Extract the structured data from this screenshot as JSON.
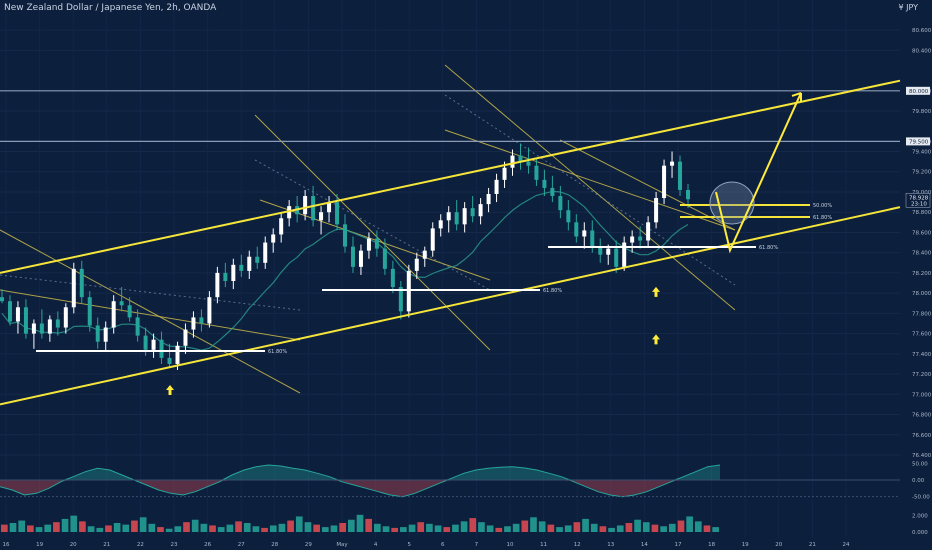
{
  "header": {
    "symbol_title": "New Zealand Dollar / Japanese Yen, 2h, OANDA",
    "currency": "¥ JPY"
  },
  "colors": {
    "background": "#0c1f3d",
    "bull": "#26a69a",
    "bear": "#e84e52",
    "channel": "#f5e53a",
    "pitchfork": "#c9b94a",
    "fib_line": "#ffffff",
    "level_line": "#8a9bb5",
    "ma_line": "#2a9d8f",
    "arrow": "#ffeb3b"
  },
  "chart_data": {
    "type": "candlestick",
    "instrument": "NZD/JPY",
    "timeframe": "2h",
    "y_axis": {
      "ticks": [
        "80.600",
        "80.400",
        "80.000",
        "79.800",
        "79.500",
        "79.400",
        "79.200",
        "79.000",
        "78.800",
        "78.600",
        "78.400",
        "78.200",
        "78.000",
        "77.800",
        "77.600",
        "77.400",
        "77.200",
        "77.000",
        "76.800",
        "76.600",
        "76.400"
      ],
      "ylim": [
        76.4,
        80.7
      ]
    },
    "x_axis": {
      "ticks": [
        "16",
        "19",
        "20",
        "21",
        "22",
        "23",
        "26",
        "27",
        "28",
        "29",
        "May",
        "4",
        "5",
        "6",
        "7",
        "10",
        "11",
        "12",
        "13",
        "14",
        "17",
        "18",
        "19",
        "20",
        "21",
        "24"
      ]
    },
    "price_labels": {
      "upper_level": "80.000",
      "lower_level": "79.500",
      "current_price": "78.928",
      "countdown": "23:10"
    },
    "horizontal_levels": [
      80.0,
      79.5
    ],
    "fib_annotations": [
      "61.80%",
      "61.80%",
      "61.80%",
      "50.00%",
      "61.80%"
    ],
    "channel": {
      "upper": [
        {
          "x": "16",
          "y": 78.2
        },
        {
          "x": "24",
          "y": 80.1
        }
      ],
      "lower": [
        {
          "x": "16",
          "y": 76.9
        },
        {
          "x": "24",
          "y": 78.85
        }
      ]
    },
    "swing_lows_marked": [
      {
        "x": "23",
        "y": 77.25
      },
      {
        "x": "4",
        "y": 77.75
      },
      {
        "x": "13",
        "y": 78.22
      }
    ],
    "projection": {
      "from_price": 78.7,
      "to_price": 79.9
    },
    "candles": [
      {
        "x": "16",
        "o": 77.96,
        "h": 78.04,
        "l": 77.9,
        "c": 77.92
      },
      {
        "x": "16",
        "o": 77.92,
        "h": 77.98,
        "l": 77.68,
        "c": 77.72
      },
      {
        "x": "16",
        "o": 77.72,
        "h": 77.92,
        "l": 77.6,
        "c": 77.86
      },
      {
        "x": "16",
        "o": 77.86,
        "h": 77.94,
        "l": 77.55,
        "c": 77.6
      },
      {
        "x": "19",
        "o": 77.6,
        "h": 77.74,
        "l": 77.45,
        "c": 77.7
      },
      {
        "x": "19",
        "o": 77.7,
        "h": 77.84,
        "l": 77.55,
        "c": 77.6
      },
      {
        "x": "19",
        "o": 77.6,
        "h": 77.78,
        "l": 77.52,
        "c": 77.74
      },
      {
        "x": "19",
        "o": 77.74,
        "h": 77.82,
        "l": 77.58,
        "c": 77.66
      },
      {
        "x": "20",
        "o": 77.66,
        "h": 77.9,
        "l": 77.6,
        "c": 77.86
      },
      {
        "x": "20",
        "o": 77.86,
        "h": 78.3,
        "l": 77.8,
        "c": 78.24
      },
      {
        "x": "20",
        "o": 78.24,
        "h": 78.32,
        "l": 77.9,
        "c": 77.96
      },
      {
        "x": "20",
        "o": 77.96,
        "h": 78.02,
        "l": 77.62,
        "c": 77.68
      },
      {
        "x": "21",
        "o": 77.68,
        "h": 77.76,
        "l": 77.45,
        "c": 77.52
      },
      {
        "x": "21",
        "o": 77.52,
        "h": 77.72,
        "l": 77.42,
        "c": 77.66
      },
      {
        "x": "21",
        "o": 77.66,
        "h": 77.98,
        "l": 77.6,
        "c": 77.92
      },
      {
        "x": "21",
        "o": 77.92,
        "h": 78.06,
        "l": 77.82,
        "c": 77.88
      },
      {
        "x": "22",
        "o": 77.88,
        "h": 77.96,
        "l": 77.72,
        "c": 77.76
      },
      {
        "x": "22",
        "o": 77.76,
        "h": 77.84,
        "l": 77.52,
        "c": 77.58
      },
      {
        "x": "22",
        "o": 77.58,
        "h": 77.66,
        "l": 77.38,
        "c": 77.44
      },
      {
        "x": "22",
        "o": 77.44,
        "h": 77.6,
        "l": 77.36,
        "c": 77.54
      },
      {
        "x": "23",
        "o": 77.54,
        "h": 77.62,
        "l": 77.3,
        "c": 77.36
      },
      {
        "x": "23",
        "o": 77.36,
        "h": 77.5,
        "l": 77.26,
        "c": 77.3
      },
      {
        "x": "23",
        "o": 77.3,
        "h": 77.52,
        "l": 77.24,
        "c": 77.48
      },
      {
        "x": "23",
        "o": 77.48,
        "h": 77.7,
        "l": 77.4,
        "c": 77.64
      },
      {
        "x": "26",
        "o": 77.64,
        "h": 77.82,
        "l": 77.56,
        "c": 77.76
      },
      {
        "x": "26",
        "o": 77.76,
        "h": 77.84,
        "l": 77.62,
        "c": 77.7
      },
      {
        "x": "26",
        "o": 77.7,
        "h": 78.02,
        "l": 77.66,
        "c": 77.96
      },
      {
        "x": "26",
        "o": 77.96,
        "h": 78.26,
        "l": 77.9,
        "c": 78.2
      },
      {
        "x": "27",
        "o": 78.2,
        "h": 78.3,
        "l": 78.06,
        "c": 78.12
      },
      {
        "x": "27",
        "o": 78.12,
        "h": 78.34,
        "l": 78.04,
        "c": 78.28
      },
      {
        "x": "27",
        "o": 78.28,
        "h": 78.38,
        "l": 78.16,
        "c": 78.22
      },
      {
        "x": "27",
        "o": 78.22,
        "h": 78.42,
        "l": 78.14,
        "c": 78.36
      },
      {
        "x": "28",
        "o": 78.36,
        "h": 78.46,
        "l": 78.24,
        "c": 78.3
      },
      {
        "x": "28",
        "o": 78.3,
        "h": 78.56,
        "l": 78.24,
        "c": 78.5
      },
      {
        "x": "28",
        "o": 78.5,
        "h": 78.64,
        "l": 78.4,
        "c": 78.58
      },
      {
        "x": "28",
        "o": 78.58,
        "h": 78.8,
        "l": 78.5,
        "c": 78.74
      },
      {
        "x": "29",
        "o": 78.74,
        "h": 78.92,
        "l": 78.66,
        "c": 78.86
      },
      {
        "x": "29",
        "o": 78.86,
        "h": 78.96,
        "l": 78.7,
        "c": 78.78
      },
      {
        "x": "29",
        "o": 78.78,
        "h": 79.02,
        "l": 78.72,
        "c": 78.96
      },
      {
        "x": "29",
        "o": 78.96,
        "h": 79.06,
        "l": 78.66,
        "c": 78.72
      },
      {
        "x": "30",
        "o": 78.72,
        "h": 78.86,
        "l": 78.58,
        "c": 78.8
      },
      {
        "x": "30",
        "o": 78.8,
        "h": 78.96,
        "l": 78.7,
        "c": 78.9
      },
      {
        "x": "30",
        "o": 78.9,
        "h": 78.98,
        "l": 78.62,
        "c": 78.68
      },
      {
        "x": "30",
        "o": 78.68,
        "h": 78.78,
        "l": 78.4,
        "c": 78.46
      },
      {
        "x": "May",
        "o": 78.46,
        "h": 78.56,
        "l": 78.2,
        "c": 78.26
      },
      {
        "x": "May",
        "o": 78.26,
        "h": 78.48,
        "l": 78.18,
        "c": 78.42
      },
      {
        "x": "May",
        "o": 78.42,
        "h": 78.6,
        "l": 78.34,
        "c": 78.54
      },
      {
        "x": "May",
        "o": 78.54,
        "h": 78.62,
        "l": 78.36,
        "c": 78.44
      },
      {
        "x": "4",
        "o": 78.44,
        "h": 78.54,
        "l": 78.18,
        "c": 78.24
      },
      {
        "x": "4",
        "o": 78.24,
        "h": 78.32,
        "l": 78.0,
        "c": 78.06
      },
      {
        "x": "4",
        "o": 78.06,
        "h": 78.12,
        "l": 77.74,
        "c": 77.82
      },
      {
        "x": "4",
        "o": 77.82,
        "h": 78.28,
        "l": 77.76,
        "c": 78.22
      },
      {
        "x": "5",
        "o": 78.22,
        "h": 78.4,
        "l": 78.14,
        "c": 78.34
      },
      {
        "x": "5",
        "o": 78.34,
        "h": 78.46,
        "l": 78.26,
        "c": 78.42
      },
      {
        "x": "5",
        "o": 78.42,
        "h": 78.7,
        "l": 78.36,
        "c": 78.64
      },
      {
        "x": "5",
        "o": 78.64,
        "h": 78.78,
        "l": 78.56,
        "c": 78.72
      },
      {
        "x": "6",
        "o": 78.72,
        "h": 78.86,
        "l": 78.6,
        "c": 78.8
      },
      {
        "x": "6",
        "o": 78.8,
        "h": 78.92,
        "l": 78.62,
        "c": 78.68
      },
      {
        "x": "6",
        "o": 78.68,
        "h": 78.9,
        "l": 78.6,
        "c": 78.84
      },
      {
        "x": "6",
        "o": 78.84,
        "h": 78.96,
        "l": 78.7,
        "c": 78.76
      },
      {
        "x": "7",
        "o": 78.76,
        "h": 78.94,
        "l": 78.68,
        "c": 78.88
      },
      {
        "x": "7",
        "o": 78.88,
        "h": 79.04,
        "l": 78.8,
        "c": 78.98
      },
      {
        "x": "7",
        "o": 78.98,
        "h": 79.18,
        "l": 78.9,
        "c": 79.12
      },
      {
        "x": "7",
        "o": 79.12,
        "h": 79.3,
        "l": 79.04,
        "c": 79.24
      },
      {
        "x": "10",
        "o": 79.24,
        "h": 79.42,
        "l": 79.16,
        "c": 79.36
      },
      {
        "x": "10",
        "o": 79.36,
        "h": 79.48,
        "l": 79.22,
        "c": 79.3
      },
      {
        "x": "10",
        "o": 79.3,
        "h": 79.44,
        "l": 79.18,
        "c": 79.26
      },
      {
        "x": "10",
        "o": 79.26,
        "h": 79.34,
        "l": 79.06,
        "c": 79.12
      },
      {
        "x": "11",
        "o": 79.12,
        "h": 79.22,
        "l": 78.96,
        "c": 79.04
      },
      {
        "x": "11",
        "o": 79.04,
        "h": 79.16,
        "l": 78.9,
        "c": 78.96
      },
      {
        "x": "11",
        "o": 78.96,
        "h": 79.06,
        "l": 78.74,
        "c": 78.82
      },
      {
        "x": "11",
        "o": 78.82,
        "h": 78.92,
        "l": 78.62,
        "c": 78.7
      },
      {
        "x": "12",
        "o": 78.7,
        "h": 78.78,
        "l": 78.5,
        "c": 78.56
      },
      {
        "x": "12",
        "o": 78.56,
        "h": 78.7,
        "l": 78.44,
        "c": 78.62
      },
      {
        "x": "12",
        "o": 78.62,
        "h": 78.72,
        "l": 78.4,
        "c": 78.46
      },
      {
        "x": "12",
        "o": 78.46,
        "h": 78.54,
        "l": 78.3,
        "c": 78.38
      },
      {
        "x": "13",
        "o": 78.38,
        "h": 78.48,
        "l": 78.28,
        "c": 78.44
      },
      {
        "x": "13",
        "o": 78.44,
        "h": 78.52,
        "l": 78.2,
        "c": 78.26
      },
      {
        "x": "13",
        "o": 78.26,
        "h": 78.56,
        "l": 78.22,
        "c": 78.5
      },
      {
        "x": "13",
        "o": 78.5,
        "h": 78.62,
        "l": 78.4,
        "c": 78.56
      },
      {
        "x": "14",
        "o": 78.56,
        "h": 78.66,
        "l": 78.44,
        "c": 78.52
      },
      {
        "x": "14",
        "o": 78.52,
        "h": 78.76,
        "l": 78.46,
        "c": 78.7
      },
      {
        "x": "14",
        "o": 78.7,
        "h": 79.0,
        "l": 78.64,
        "c": 78.94
      },
      {
        "x": "14",
        "o": 78.94,
        "h": 79.32,
        "l": 78.88,
        "c": 79.26
      },
      {
        "x": "17",
        "o": 79.26,
        "h": 79.4,
        "l": 79.14,
        "c": 79.3
      },
      {
        "x": "17",
        "o": 79.3,
        "h": 79.36,
        "l": 78.96,
        "c": 79.02
      },
      {
        "x": "17",
        "o": 79.02,
        "h": 79.08,
        "l": 78.84,
        "c": 78.928
      }
    ],
    "oscillator": {
      "ticks": [
        "50.00",
        "0.00",
        "-50.00"
      ],
      "values": [
        -20,
        -30,
        -45,
        -40,
        -25,
        -5,
        10,
        25,
        35,
        30,
        15,
        0,
        -15,
        -30,
        -40,
        -45,
        -35,
        -20,
        -5,
        15,
        30,
        40,
        45,
        42,
        35,
        30,
        20,
        10,
        -5,
        -15,
        -25,
        -35,
        -45,
        -50,
        -40,
        -25,
        -10,
        5,
        20,
        30,
        35,
        38,
        40,
        36,
        30,
        20,
        10,
        -5,
        -20,
        -35,
        -45,
        -50,
        -45,
        -35,
        -20,
        -5,
        10,
        25,
        40,
        45
      ]
    },
    "volume": {
      "ticks": [
        "2.000",
        "0.000"
      ],
      "values": [
        0.9,
        1.1,
        1.4,
        0.8,
        0.6,
        0.9,
        1.2,
        1.6,
        2.0,
        1.3,
        0.7,
        0.5,
        0.8,
        1.1,
        0.9,
        1.4,
        1.8,
        1.0,
        0.6,
        0.4,
        0.7,
        1.2,
        1.5,
        1.0,
        0.8,
        0.6,
        0.9,
        1.3,
        1.1,
        0.7,
        0.5,
        0.8,
        1.0,
        1.4,
        1.9,
        1.2,
        0.9,
        0.6,
        0.8,
        1.1,
        1.5,
        2.1,
        1.6,
        1.0,
        0.7,
        0.5,
        0.6,
        0.9,
        1.2,
        1.0,
        0.8,
        0.6,
        0.9,
        1.3,
        1.7,
        1.2,
        0.8,
        0.5,
        0.7,
        1.0,
        1.4,
        1.8,
        1.3,
        0.9,
        0.6,
        0.8,
        1.2,
        1.6,
        1.0,
        0.7,
        0.5,
        0.8,
        1.1,
        1.5,
        1.2,
        0.9,
        0.7,
        1.0,
        1.4,
        1.9,
        1.3,
        0.8,
        0.6
      ]
    }
  }
}
